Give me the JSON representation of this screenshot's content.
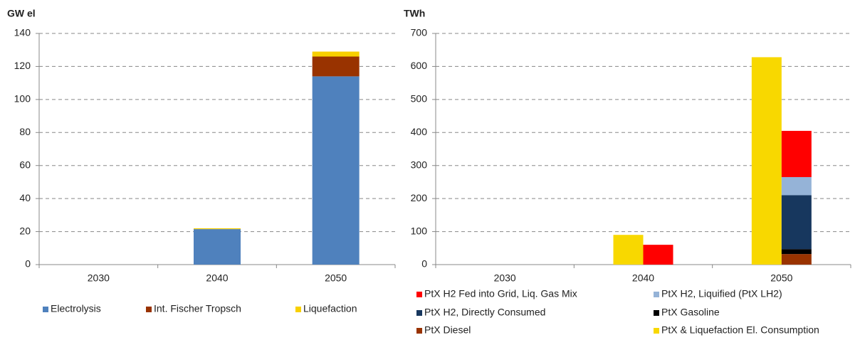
{
  "chart_data": [
    {
      "type": "bar",
      "stacked": true,
      "title": "GW el",
      "categories": [
        "2030",
        "2040",
        "2050"
      ],
      "series": [
        {
          "name": "Electrolysis",
          "color": "#4f81bd",
          "stack": 1,
          "values": [
            0,
            21.5,
            114
          ]
        },
        {
          "name": "Int. Fischer Tropsch",
          "color": "#993300",
          "stack": 1,
          "values": [
            0,
            0,
            12
          ]
        },
        {
          "name": "Liquefaction",
          "color": "#f8d000",
          "stack": 1,
          "values": [
            0,
            0.5,
            3
          ]
        }
      ],
      "ylim": [
        0,
        140
      ],
      "yticks": [
        0,
        20,
        40,
        60,
        80,
        100,
        120,
        140
      ],
      "grid": true
    },
    {
      "type": "bar",
      "stacked": true,
      "title": "TWh",
      "categories": [
        "2030",
        "2040",
        "2050"
      ],
      "series": [
        {
          "name": "PtX Diesel",
          "color": "#993300",
          "stack": 2,
          "values": [
            0,
            0,
            32
          ]
        },
        {
          "name": "PtX Gasoline",
          "color": "#000000",
          "stack": 2,
          "values": [
            0,
            0,
            15
          ]
        },
        {
          "name": "PtX H2, Directly Consumed",
          "color": "#17375e",
          "stack": 2,
          "values": [
            0,
            0,
            163
          ]
        },
        {
          "name": "PtX H2, Liquified (PtX LH2)",
          "color": "#95b3d7",
          "stack": 2,
          "values": [
            0,
            0,
            55
          ]
        },
        {
          "name": "PtX H2 Fed into Grid, Liq. Gas Mix",
          "color": "#ff0000",
          "stack": 2,
          "values": [
            0,
            60,
            140
          ]
        },
        {
          "name": "PtX & Liquefaction El. Consumption",
          "color": "#f8d800",
          "stack": 1,
          "values": [
            0,
            90,
            628
          ]
        }
      ],
      "ylim": [
        0,
        700
      ],
      "yticks": [
        0,
        100,
        200,
        300,
        400,
        500,
        600,
        700
      ],
      "grid": true
    }
  ]
}
